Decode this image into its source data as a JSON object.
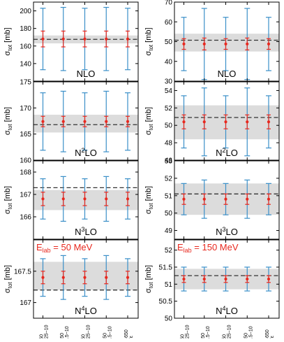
{
  "figure": {
    "ylabel_main": "σ",
    "ylabel_sub": "tot",
    "ylabel_unit": " [mb]",
    "x_tick_labels": [
      {
        "accent": "",
        "main": "C",
        "sup": "650",
        "sub": "0.25−10"
      },
      {
        "accent": "",
        "main": "C",
        "sup": "650",
        "sub": "0.5−10"
      },
      {
        "accent": "‾",
        "main": "C",
        "sup": "650",
        "sub": "0.25−10"
      },
      {
        "accent": "‾",
        "main": "C",
        "sup": "650",
        "sub": "0.5−10"
      },
      {
        "accent": "",
        "main": "C",
        "sup": "650",
        "sub": "ε"
      }
    ],
    "colors": {
      "errorbar": "#3a8fc8",
      "point": "#e8281e",
      "band": "#dcdcdc",
      "reference_line": "#333333",
      "annotation": "#e8281e"
    }
  },
  "chart_data": [
    {
      "type": "scatter",
      "panel": "NLO, 50 MeV",
      "order_label": {
        "main": "NLO",
        "sup": ""
      },
      "ylim": [
        120,
        210
      ],
      "yticks": [
        140,
        160,
        180,
        200
      ],
      "reference": 167.6,
      "band": [
        163.0,
        172.0
      ],
      "points": [
        {
          "y": 168.0,
          "inner_err": 9.0,
          "outer_err": 35.0
        },
        {
          "y": 168.0,
          "inner_err": 9.0,
          "outer_err": 36.0
        },
        {
          "y": 168.0,
          "inner_err": 9.0,
          "outer_err": 35.0
        },
        {
          "y": 168.0,
          "inner_err": 9.0,
          "outer_err": 36.0
        },
        {
          "y": 168.0,
          "inner_err": 9.0,
          "outer_err": 35.0
        }
      ]
    },
    {
      "type": "scatter",
      "panel": "NLO, 150 MeV",
      "order_label": {
        "main": "NLO",
        "sup": ""
      },
      "ylim": [
        30,
        70
      ],
      "yticks": [
        30,
        40,
        50,
        60,
        70
      ],
      "reference": 50.7,
      "band": [
        45.0,
        54.0
      ],
      "points": [
        {
          "y": 48.8,
          "inner_err": 2.7,
          "outer_err": 13.5
        },
        {
          "y": 48.8,
          "inner_err": 3.0,
          "outer_err": 18.0
        },
        {
          "y": 48.8,
          "inner_err": 2.7,
          "outer_err": 13.5
        },
        {
          "y": 48.8,
          "inner_err": 3.0,
          "outer_err": 18.0
        },
        {
          "y": 48.8,
          "inner_err": 2.7,
          "outer_err": 13.5
        }
      ]
    },
    {
      "type": "scatter",
      "panel": "N2LO, 50 MeV",
      "order_label": {
        "main": "N",
        "sup": "2",
        "rest": "LO"
      },
      "ylim": [
        160,
        175
      ],
      "yticks": [
        160,
        165,
        170,
        175
      ],
      "reference": 166.8,
      "band": [
        165.3,
        168.7
      ],
      "points": [
        {
          "y": 167.4,
          "inner_err": 1.0,
          "outer_err": 5.5
        },
        {
          "y": 167.4,
          "inner_err": 1.0,
          "outer_err": 5.8
        },
        {
          "y": 167.4,
          "inner_err": 1.0,
          "outer_err": 5.5
        },
        {
          "y": 167.4,
          "inner_err": 1.0,
          "outer_err": 5.8
        },
        {
          "y": 167.4,
          "inner_err": 1.0,
          "outer_err": 5.5
        }
      ]
    },
    {
      "type": "scatter",
      "panel": "N2LO, 150 MeV",
      "order_label": {
        "main": "N",
        "sup": "2",
        "rest": "LO"
      },
      "ylim": [
        46,
        55
      ],
      "yticks": [
        46,
        48,
        50,
        52,
        54
      ],
      "reference": 50.9,
      "band": [
        48.4,
        52.3
      ],
      "points": [
        {
          "y": 50.4,
          "inner_err": 0.8,
          "outer_err": 3.0
        },
        {
          "y": 50.4,
          "inner_err": 0.8,
          "outer_err": 3.9
        },
        {
          "y": 50.4,
          "inner_err": 0.8,
          "outer_err": 3.0
        },
        {
          "y": 50.4,
          "inner_err": 0.8,
          "outer_err": 3.9
        },
        {
          "y": 50.4,
          "inner_err": 0.8,
          "outer_err": 3.0
        }
      ]
    },
    {
      "type": "scatter",
      "panel": "N3LO, 50 MeV",
      "order_label": {
        "main": "N",
        "sup": "3",
        "rest": "LO"
      },
      "ylim": [
        165,
        168.5
      ],
      "yticks": [
        166,
        167,
        168
      ],
      "reference": 167.3,
      "band": [
        166.3,
        167.2
      ],
      "points": [
        {
          "y": 166.8,
          "inner_err": 0.3,
          "outer_err": 0.9
        },
        {
          "y": 166.8,
          "inner_err": 0.3,
          "outer_err": 1.0
        },
        {
          "y": 166.8,
          "inner_err": 0.3,
          "outer_err": 0.9
        },
        {
          "y": 166.8,
          "inner_err": 0.3,
          "outer_err": 1.0
        },
        {
          "y": 166.8,
          "inner_err": 0.3,
          "outer_err": 0.9
        }
      ]
    },
    {
      "type": "scatter",
      "panel": "N3LO, 150 MeV",
      "order_label": {
        "main": "N",
        "sup": "3",
        "rest": "LO"
      },
      "ylim": [
        48.5,
        53
      ],
      "yticks": [
        49,
        50,
        51,
        52,
        53
      ],
      "reference": 51.1,
      "band": [
        49.9,
        51.7
      ],
      "points": [
        {
          "y": 50.8,
          "inner_err": 0.3,
          "outer_err": 0.9
        },
        {
          "y": 50.8,
          "inner_err": 0.3,
          "outer_err": 1.1
        },
        {
          "y": 50.8,
          "inner_err": 0.3,
          "outer_err": 0.9
        },
        {
          "y": 50.8,
          "inner_err": 0.3,
          "outer_err": 1.1
        },
        {
          "y": 50.8,
          "inner_err": 0.3,
          "outer_err": 0.9
        }
      ]
    },
    {
      "type": "scatter",
      "panel": "N4LO, 50 MeV",
      "order_label": {
        "main": "N",
        "sup": "4",
        "rest": "LO"
      },
      "ylim": [
        166.75,
        168.0
      ],
      "yticks": [
        167,
        167.5
      ],
      "reference": 167.2,
      "band": [
        167.2,
        167.65
      ],
      "annotation": {
        "main": "E",
        "sub": "lab",
        "rest": " = 50 MeV"
      },
      "points": [
        {
          "y": 167.4,
          "inner_err": 0.1,
          "outer_err": 0.3
        },
        {
          "y": 167.4,
          "inner_err": 0.1,
          "outer_err": 0.35
        },
        {
          "y": 167.4,
          "inner_err": 0.1,
          "outer_err": 0.3
        },
        {
          "y": 167.4,
          "inner_err": 0.1,
          "outer_err": 0.35
        },
        {
          "y": 167.4,
          "inner_err": 0.1,
          "outer_err": 0.3
        }
      ]
    },
    {
      "type": "scatter",
      "panel": "N4LO, 150 MeV",
      "order_label": {
        "main": "N",
        "sup": "4",
        "rest": "LO"
      },
      "ylim": [
        50,
        52.3
      ],
      "yticks": [
        50,
        50.5,
        51,
        51.5,
        52
      ],
      "reference": 51.25,
      "band": [
        50.85,
        51.45
      ],
      "annotation": {
        "main": "E",
        "sub": "lab",
        "rest": " = 150 MeV"
      },
      "points": [
        {
          "y": 51.15,
          "inner_err": 0.1,
          "outer_err": 0.35
        },
        {
          "y": 51.15,
          "inner_err": 0.1,
          "outer_err": 0.35
        },
        {
          "y": 51.15,
          "inner_err": 0.1,
          "outer_err": 0.35
        },
        {
          "y": 51.15,
          "inner_err": 0.1,
          "outer_err": 0.35
        },
        {
          "y": 51.15,
          "inner_err": 0.1,
          "outer_err": 0.35
        }
      ]
    }
  ]
}
